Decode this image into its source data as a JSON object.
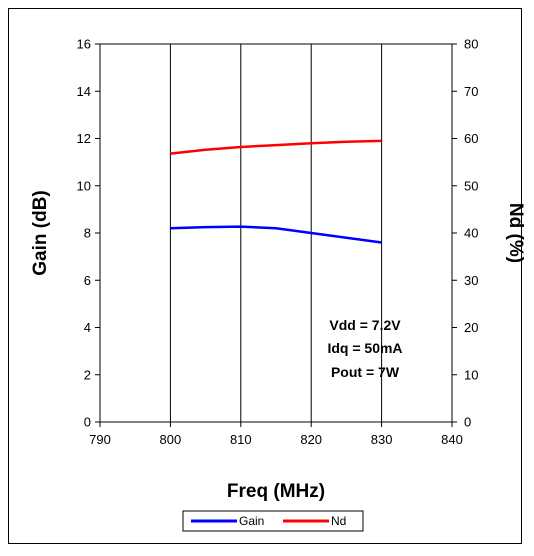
{
  "chart_data": {
    "type": "line",
    "xlabel": "Freq (MHz)",
    "ylabel": "Gain (dB)",
    "y2label": "Nd (%)",
    "xlim": [
      790,
      840
    ],
    "ylim": [
      0,
      16
    ],
    "y2lim": [
      0,
      80
    ],
    "xticks": [
      790,
      800,
      810,
      820,
      830,
      840
    ],
    "yticks": [
      0,
      2,
      4,
      6,
      8,
      10,
      12,
      14,
      16
    ],
    "y2ticks": [
      0,
      10,
      20,
      30,
      40,
      50,
      60,
      70,
      80
    ],
    "grid": "vertical",
    "legend_position": "bottom",
    "series": [
      {
        "name": "Gain",
        "axis": "left",
        "color": "#0000ff",
        "x": [
          800,
          805,
          810,
          815,
          820,
          825,
          830
        ],
        "values": [
          8.2,
          8.25,
          8.27,
          8.2,
          8.0,
          7.8,
          7.6
        ]
      },
      {
        "name": "Nd",
        "axis": "right",
        "color": "#ff0000",
        "x": [
          800,
          805,
          810,
          815,
          820,
          825,
          830
        ],
        "values": [
          56.8,
          57.6,
          58.2,
          58.6,
          59.0,
          59.3,
          59.5
        ]
      }
    ],
    "annotations": [
      "Vdd = 7.2V",
      "Idq = 50mA",
      "Pout = 7W"
    ]
  }
}
